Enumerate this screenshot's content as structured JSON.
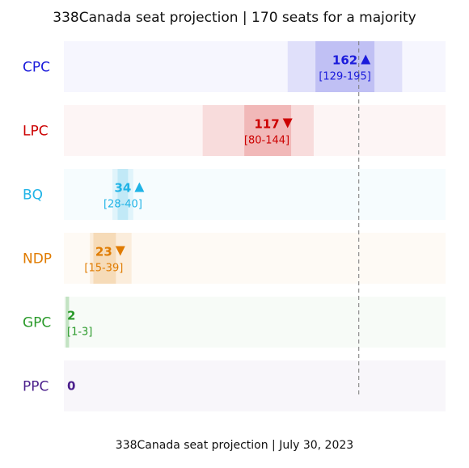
{
  "chart_data": {
    "type": "bar",
    "title": "338Canada seat projection | 170 seats for a majority",
    "footer": "338Canada seat projection | July 30, 2023",
    "majority": 170,
    "xlim": [
      0,
      220
    ],
    "series": [
      {
        "party": "CPC",
        "value": 162,
        "low": 129,
        "high": 195,
        "lowInner": 145,
        "highInner": 179,
        "trend": "up",
        "range_label": "[129-195]",
        "color": "#1a1adb"
      },
      {
        "party": "LPC",
        "value": 117,
        "low": 80,
        "high": 144,
        "lowInner": 104,
        "highInner": 131,
        "trend": "down",
        "range_label": "[80-144]",
        "color": "#cc0000"
      },
      {
        "party": "BQ",
        "value": 34,
        "low": 28,
        "high": 40,
        "lowInner": 31,
        "highInner": 37,
        "trend": "up",
        "range_label": "[28-40]",
        "color": "#1fb3e6"
      },
      {
        "party": "NDP",
        "value": 23,
        "low": 15,
        "high": 39,
        "lowInner": 17,
        "highInner": 30,
        "trend": "down",
        "range_label": "[15-39]",
        "color": "#e07b00"
      },
      {
        "party": "GPC",
        "value": 2,
        "low": 1,
        "high": 3,
        "lowInner": 1,
        "highInner": 3,
        "trend": "none",
        "range_label": "[1-3]",
        "color": "#2a9a2a"
      },
      {
        "party": "PPC",
        "value": 0,
        "low": 0,
        "high": 0,
        "lowInner": 0,
        "highInner": 0,
        "trend": "none",
        "range_label": "",
        "color": "#4b1f8c"
      }
    ]
  }
}
